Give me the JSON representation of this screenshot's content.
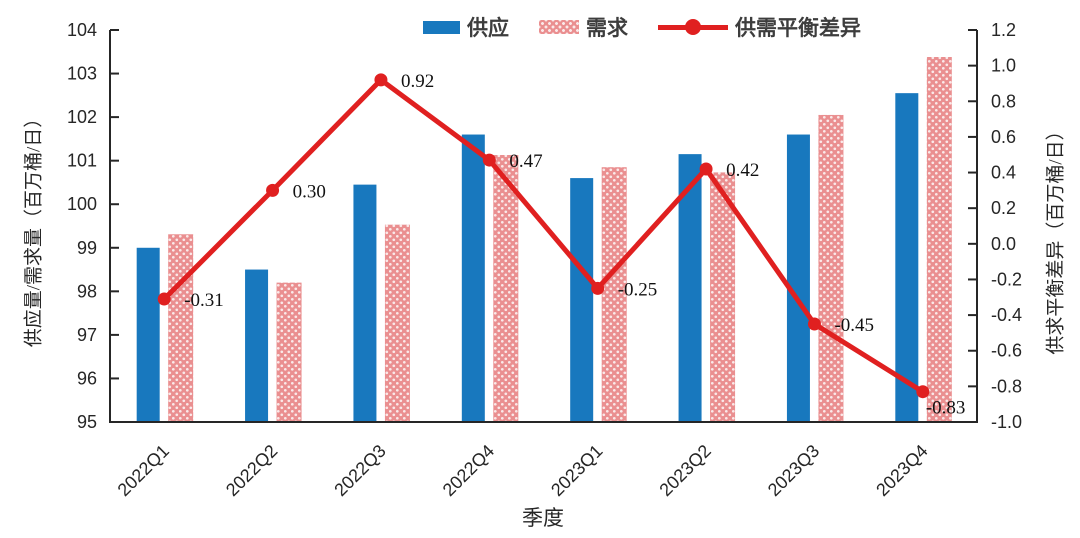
{
  "chart_data": {
    "type": "bar",
    "subtype": "bar-line-combo",
    "title": "",
    "categories": [
      "2022Q1",
      "2022Q2",
      "2022Q3",
      "2022Q4",
      "2023Q1",
      "2023Q2",
      "2023Q3",
      "2023Q4"
    ],
    "series": [
      {
        "name": "供应",
        "type": "bar",
        "yaxis": "left",
        "color": "#1878BE",
        "values": [
          99.0,
          98.5,
          100.45,
          101.6,
          100.6,
          101.15,
          101.6,
          102.55
        ]
      },
      {
        "name": "需求",
        "type": "bar",
        "yaxis": "left",
        "color": "#EA8F90",
        "fill_pattern": "white-dots",
        "values": [
          99.31,
          98.2,
          99.53,
          101.13,
          100.85,
          100.73,
          102.05,
          103.38
        ]
      },
      {
        "name": "供需平衡差异",
        "type": "line",
        "yaxis": "right",
        "color": "#E02020",
        "values": [
          -0.31,
          0.3,
          0.92,
          0.47,
          -0.25,
          0.42,
          -0.45,
          -0.83
        ],
        "point_labels": [
          "-0.31",
          "0.30",
          "0.92",
          "0.47",
          "-0.25",
          "0.42",
          "-0.45",
          "-0.83"
        ]
      }
    ],
    "left_axis": {
      "title": "供应量/需求量（百万桶/日）",
      "min": 95,
      "max": 104,
      "tick_step": 1,
      "ticks": [
        "95",
        "96",
        "97",
        "98",
        "99",
        "100",
        "101",
        "102",
        "103",
        "104"
      ]
    },
    "right_axis": {
      "title": "供求平衡差异（百万桶/日）",
      "min": -1.0,
      "max": 1.2,
      "tick_step": 0.2,
      "ticks": [
        "-1.0",
        "-0.8",
        "-0.6",
        "-0.4",
        "-0.2",
        "0.0",
        "0.2",
        "0.4",
        "0.6",
        "0.8",
        "1.0",
        "1.2"
      ]
    },
    "x_axis": {
      "title": "季度",
      "labels_rotation_deg": -45
    },
    "legend": {
      "position": "top-center",
      "items": [
        "供应",
        "需求",
        "供需平衡差异"
      ]
    },
    "grid": false
  },
  "colors": {
    "supply_bar": "#1878BE",
    "demand_bar": "#EA8F90",
    "demand_dot": "#FAE9E9",
    "diff_line": "#E02020",
    "axis": "#262626",
    "tick_text": "#262626",
    "data_label_text": "#111111",
    "background": "#FFFFFF"
  }
}
